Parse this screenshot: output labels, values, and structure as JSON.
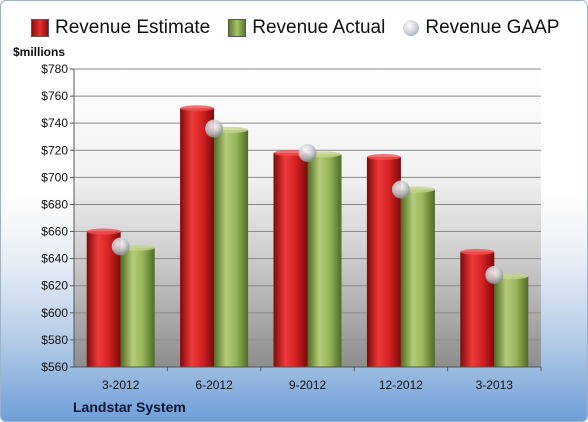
{
  "chart_data": {
    "type": "bar",
    "unit_label": "$millions",
    "categories": [
      "3-2012",
      "6-2012",
      "9-2012",
      "12-2012",
      "3-2013"
    ],
    "series": [
      {
        "name": "Revenue Estimate",
        "kind": "bar",
        "color": "#c81e1e",
        "values": [
          660,
          751,
          718,
          715,
          645
        ]
      },
      {
        "name": "Revenue Actual",
        "kind": "bar",
        "color": "#8cab4f",
        "values": [
          648,
          735,
          717,
          691,
          627
        ]
      },
      {
        "name": "Revenue GAAP",
        "kind": "marker",
        "color": "#c0c4cc",
        "values": [
          649,
          736,
          718,
          691,
          628
        ]
      }
    ],
    "ylim": [
      560,
      780
    ],
    "yticks": [
      560,
      580,
      600,
      620,
      640,
      660,
      680,
      700,
      720,
      740,
      760,
      780
    ],
    "ytick_labels": [
      "$560",
      "$580",
      "$600",
      "$620",
      "$640",
      "$660",
      "$680",
      "$700",
      "$720",
      "$740",
      "$760",
      "$780"
    ],
    "grid": true,
    "legend_position": "top"
  },
  "footer": {
    "company": "Landstar System"
  }
}
